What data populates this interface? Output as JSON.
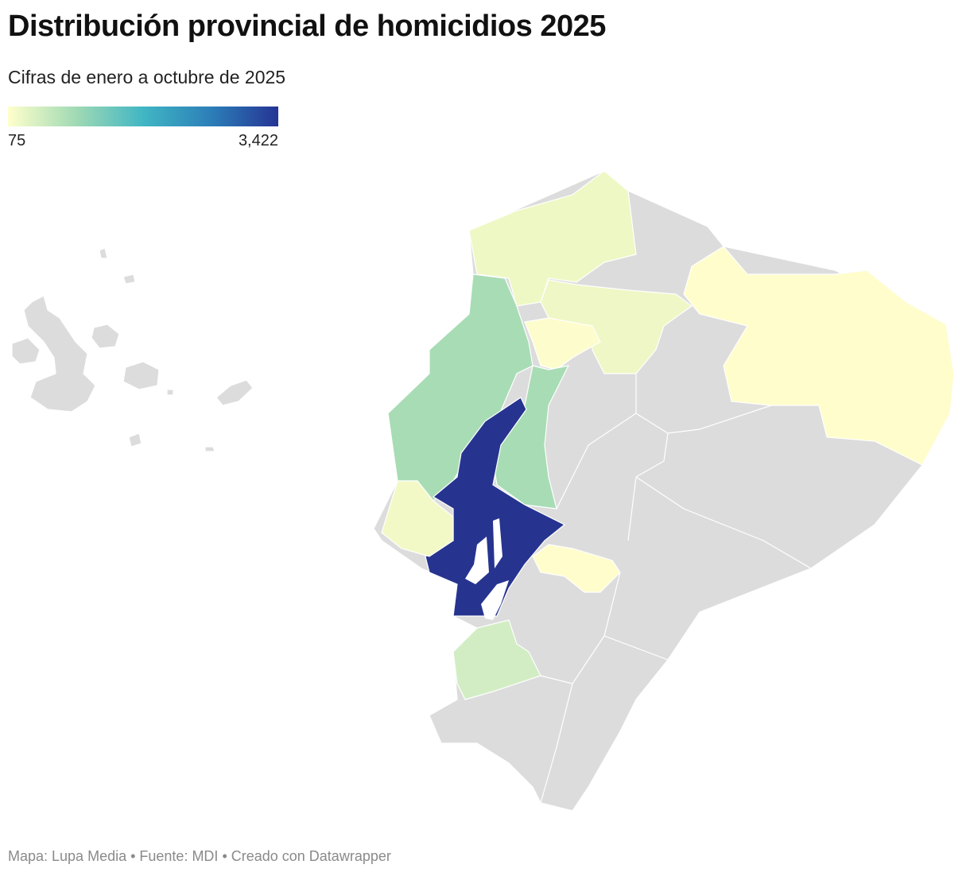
{
  "header": {
    "title": "Distribución provincial de homicidios 2025",
    "subtitle": "Cifras de enero a octubre de 2025"
  },
  "legend": {
    "range": [
      75,
      3422
    ],
    "ticks": [
      75,
      {
        "value": 3422,
        "label": "3,422"
      }
    ],
    "colors": [
      "#ffffcc",
      "#a1dab4",
      "#41b6c4",
      "#2c7fb8",
      "#253494"
    ]
  },
  "footer": "Mapa: Lupa Media • Fuente: MDI • Creado con Datawrapper"
}
